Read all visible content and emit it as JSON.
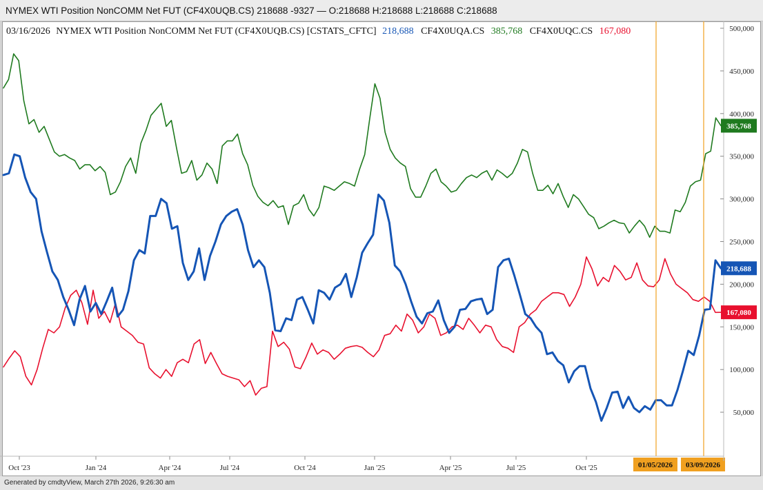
{
  "window": {
    "title": "NYMEX WTI Position NonCOMM Net FUT (CF4X0UQB.CS) 218688 -9327 — O:218688 H:218688 L:218688 C:218688"
  },
  "legend": {
    "date": "03/16/2026",
    "main_label": "NYMEX WTI Position NonCOMM Net FUT (CF4X0UQB.CS) [CSTATS_CFTC]",
    "items": [
      {
        "label": "CF4X0UQA.CS",
        "value": "385,768",
        "color": "#1f7a1f"
      },
      {
        "label": "CF4X0UQC.CS",
        "value": "167,080",
        "color": "#e8102e"
      }
    ],
    "main_value": "218,688",
    "main_color": "#1555b5"
  },
  "footer": {
    "text": "Generated by cmdtyView, March 27th 2026, 9:26:30 am"
  },
  "chart_data": {
    "type": "line",
    "x_labels": [
      "Oct '23",
      "Jan '24",
      "Apr '24",
      "Jul '24",
      "Oct '24",
      "Jan '25",
      "Apr '25",
      "Jul '25",
      "Oct '25"
    ],
    "y_ticks": [
      "50,000",
      "100,000",
      "150,000",
      "200,000",
      "250,000",
      "300,000",
      "350,000",
      "400,000",
      "450,000",
      "500,000"
    ],
    "ylim": [
      0,
      500000
    ],
    "grid": false,
    "markers": [
      {
        "label": "01/05/2026",
        "color": "#f0a020"
      },
      {
        "label": "03/09/2026",
        "color": "#f0a020"
      }
    ],
    "series": [
      {
        "name": "CF4X0UQA.CS",
        "color": "#1f7a1f",
        "last_label": "385,768",
        "values": [
          430000,
          440000,
          470000,
          462000,
          415000,
          388000,
          393000,
          378000,
          385000,
          370000,
          355000,
          350000,
          352000,
          348000,
          345000,
          335000,
          340000,
          340000,
          333000,
          338000,
          331000,
          305000,
          308000,
          320000,
          338000,
          348000,
          330000,
          365000,
          380000,
          398000,
          405000,
          412000,
          385000,
          392000,
          360000,
          330000,
          332000,
          345000,
          322000,
          328000,
          342000,
          335000,
          318000,
          362000,
          368000,
          368000,
          376000,
          353000,
          340000,
          316000,
          303000,
          296000,
          292000,
          298000,
          290000,
          292000,
          270000,
          292000,
          295000,
          305000,
          288000,
          280000,
          290000,
          315000,
          313000,
          310000,
          315000,
          320000,
          318000,
          315000,
          335000,
          352000,
          395000,
          435000,
          418000,
          378000,
          358000,
          348000,
          342000,
          338000,
          312000,
          302000,
          302000,
          315000,
          330000,
          335000,
          320000,
          315000,
          308000,
          310000,
          318000,
          325000,
          328000,
          325000,
          330000,
          333000,
          322000,
          334000,
          330000,
          325000,
          330000,
          342000,
          358000,
          355000,
          330000,
          310000,
          310000,
          316000,
          306000,
          318000,
          303000,
          290000,
          305000,
          300000,
          291000,
          282000,
          278000,
          265000,
          268000,
          272000,
          275000,
          272000,
          271000,
          260000,
          268000,
          275000,
          268000,
          255000,
          268000,
          262000,
          262000,
          260000,
          287000,
          285000,
          296000,
          315000,
          320000,
          322000,
          353000,
          356000,
          395000,
          385768
        ]
      },
      {
        "name": "CF4X0UQB.CS",
        "color": "#1555b5",
        "last_label": "218,688",
        "values": [
          328000,
          330000,
          352000,
          350000,
          325000,
          308000,
          300000,
          262000,
          238000,
          215000,
          205000,
          185000,
          170000,
          152000,
          182000,
          198000,
          168000,
          178000,
          165000,
          180000,
          196000,
          162000,
          170000,
          192000,
          228000,
          240000,
          236000,
          280000,
          280000,
          300000,
          295000,
          265000,
          268000,
          225000,
          205000,
          215000,
          242000,
          205000,
          233000,
          250000,
          270000,
          280000,
          285000,
          288000,
          270000,
          240000,
          220000,
          228000,
          220000,
          190000,
          146000,
          145000,
          160000,
          158000,
          182000,
          185000,
          170000,
          154000,
          193000,
          190000,
          182000,
          196000,
          200000,
          212000,
          185000,
          208000,
          237000,
          248000,
          258000,
          305000,
          298000,
          272000,
          222000,
          215000,
          200000,
          180000,
          162000,
          154000,
          166000,
          168000,
          181000,
          158000,
          143000,
          150000,
          170000,
          171000,
          180000,
          182000,
          183000,
          165000,
          170000,
          220000,
          228000,
          230000,
          210000,
          188000,
          165000,
          160000,
          150000,
          143000,
          118000,
          120000,
          110000,
          105000,
          85000,
          98000,
          104000,
          104000,
          78000,
          62000,
          40000,
          55000,
          73000,
          74000,
          55000,
          68000,
          55000,
          50000,
          57000,
          53000,
          64000,
          64000,
          58000,
          58000,
          76000,
          98000,
          122000,
          117000,
          140000,
          170000,
          171000,
          228000,
          218688
        ]
      },
      {
        "name": "CF4X0UQC.CS",
        "color": "#e8102e",
        "last_label": "167,080",
        "values": [
          103000,
          113000,
          122000,
          115000,
          92000,
          82000,
          100000,
          125000,
          147000,
          143000,
          150000,
          172000,
          187000,
          193000,
          178000,
          153000,
          193000,
          160000,
          168000,
          155000,
          178000,
          150000,
          145000,
          140000,
          132000,
          130000,
          102000,
          95000,
          90000,
          100000,
          92000,
          108000,
          112000,
          108000,
          130000,
          135000,
          107000,
          120000,
          107000,
          95000,
          92000,
          90000,
          88000,
          80000,
          87000,
          70000,
          78000,
          80000,
          145000,
          127000,
          132000,
          124000,
          103000,
          101000,
          115000,
          131000,
          118000,
          123000,
          120000,
          112000,
          118000,
          125000,
          127000,
          128000,
          126000,
          120000,
          115000,
          123000,
          140000,
          142000,
          152000,
          145000,
          165000,
          158000,
          143000,
          150000,
          165000,
          160000,
          140000,
          143000,
          150000,
          152000,
          147000,
          160000,
          152000,
          143000,
          152000,
          150000,
          135000,
          127000,
          125000,
          120000,
          150000,
          155000,
          165000,
          170000,
          180000,
          185000,
          190000,
          190000,
          188000,
          174000,
          185000,
          200000,
          232000,
          218000,
          198000,
          208000,
          203000,
          222000,
          215000,
          205000,
          208000,
          225000,
          205000,
          198000,
          197000,
          205000,
          230000,
          212000,
          200000,
          195000,
          190000,
          182000,
          180000,
          185000,
          180000,
          167000,
          167080
        ]
      }
    ]
  }
}
